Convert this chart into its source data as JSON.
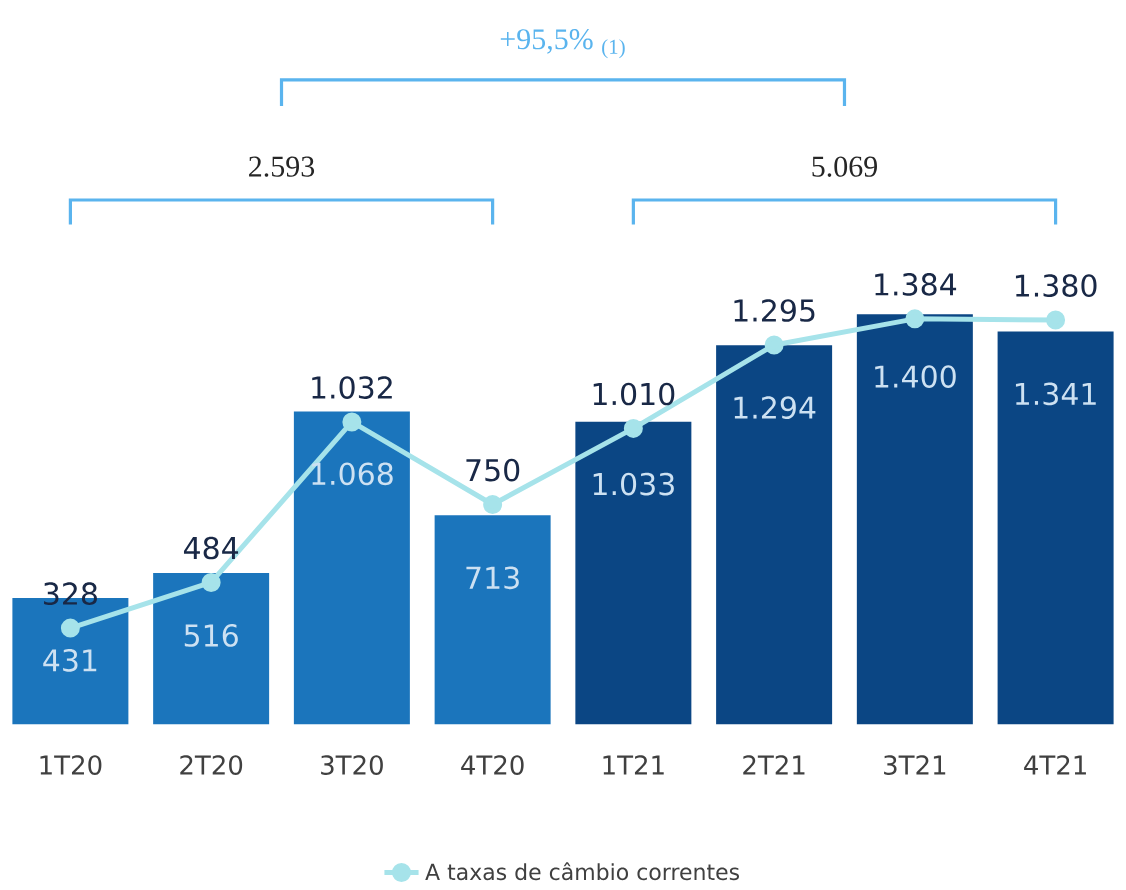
{
  "chart_data": {
    "type": "bar",
    "categories": [
      "1T20",
      "2T20",
      "3T20",
      "4T20",
      "1T21",
      "2T21",
      "3T21",
      "4T21"
    ],
    "series": [
      {
        "colors": [
          "#1b75bc",
          "#1b75bc",
          "#1b75bc",
          "#1b75bc",
          "#0b4684",
          "#0b4684",
          "#0b4684",
          "#0b4684"
        ],
        "values": [
          431,
          516,
          1068,
          713,
          1033,
          1294,
          1400,
          1341
        ],
        "value_labels": [
          "431",
          "516",
          "1.068",
          "713",
          "1.033",
          "1.294",
          "1.400",
          "1.341"
        ]
      },
      {
        "type": "line",
        "name": "A taxas de câmbio correntes",
        "color": "#a6e3ea",
        "marker": "circle",
        "values": [
          328,
          484,
          1032,
          750,
          1010,
          1295,
          1384,
          1380
        ],
        "value_labels": [
          "328",
          "484",
          "1.032",
          "750",
          "1.010",
          "1.295",
          "1.384",
          "1.380"
        ]
      }
    ],
    "legend": "bottom",
    "annotations": [
      "2.593",
      "5.069",
      "+95,5% $_{(1)}$"
    ]
  }
}
